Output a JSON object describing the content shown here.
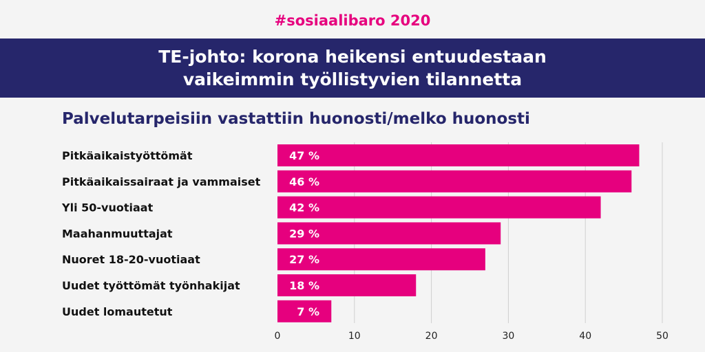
{
  "header": {
    "hashtag": "#sosiaalibaro 2020",
    "title_line1": "TE-johto: korona heikensi entuudestaan",
    "title_line2": "vaikeimmin työllistyvien tilannetta"
  },
  "colors": {
    "accent": "#e6007e",
    "banner": "#26266b",
    "background": "#f4f4f4",
    "grid": "#cfcfcf"
  },
  "chart_data": {
    "type": "bar",
    "orientation": "horizontal",
    "title": "Palvelutarpeisiin vastattiin huonosti/melko huonosti",
    "categories": [
      "Pitkäaikaistyöttömät",
      "Pitkäaikaissairaat ja vammaiset",
      "Yli 50-vuotiaat",
      "Maahanmuuttajat",
      "Nuoret 18-20-vuotiaat",
      "Uudet työttömät työnhakijat",
      "Uudet lomautetut"
    ],
    "values": [
      47,
      46,
      42,
      29,
      27,
      18,
      7
    ],
    "value_labels": [
      "47 %",
      "46 %",
      "42 %",
      "29 %",
      "27 %",
      "18 %",
      "7 %"
    ],
    "xlim": [
      0,
      50
    ],
    "xticks": [
      0,
      10,
      20,
      30,
      40,
      50
    ],
    "grid": true,
    "legend": "none"
  }
}
